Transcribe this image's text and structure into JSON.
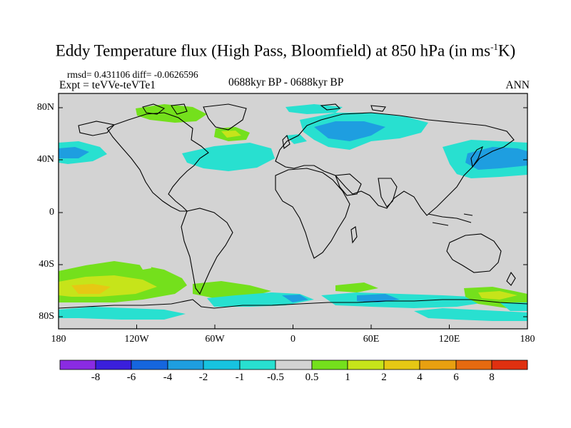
{
  "title": {
    "main": "Eddy Temperature flux (High Pass, Bloomfield) at 850 hPa (in ms",
    "sup": "-1",
    "end": "K)"
  },
  "stats": "rmsd= 0.431106 diff= -0.0626596",
  "experiment": "Expt = teVVe-teVTe1",
  "center_label": "0688kyr BP - 0688kyr BP",
  "season": "ANN",
  "map": {
    "projection": "cylindrical equidistant",
    "lon_range": [
      -180,
      180
    ],
    "lat_range": [
      -90,
      90
    ],
    "background_fill": "#d3d3d3",
    "y_ticks": [
      "80N",
      "40N",
      "0",
      "40S",
      "80S"
    ],
    "x_ticks": [
      "180",
      "120W",
      "60W",
      "0",
      "60E",
      "120E",
      "180"
    ]
  },
  "colorbar": {
    "labels": [
      "-8",
      "-6",
      "-4",
      "-2",
      "-1",
      "-0.5",
      "0.5",
      "1",
      "2",
      "4",
      "6",
      "8"
    ],
    "colors": [
      "#8a2be2",
      "#3a1fdc",
      "#1566de",
      "#1e9ee0",
      "#17c3e0",
      "#28e0d0",
      "#d3d3d3",
      "#74e01c",
      "#c6e41a",
      "#e6c814",
      "#e8a010",
      "#e66a10",
      "#e03010"
    ]
  }
}
